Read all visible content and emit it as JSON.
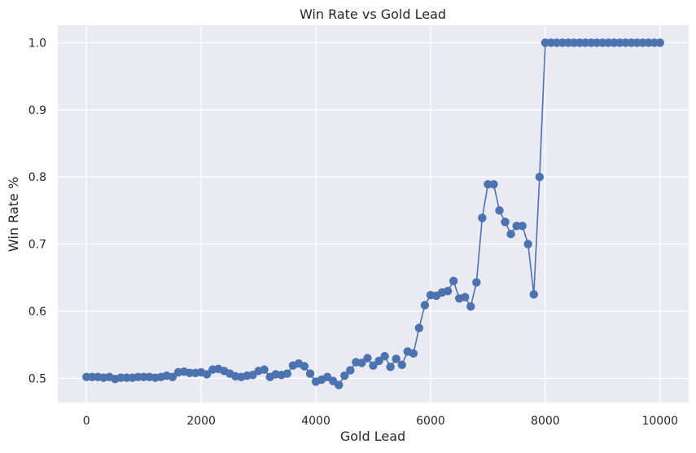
{
  "chart_data": {
    "type": "line",
    "title": "Win Rate vs Gold Lead",
    "xlabel": "Gold Lead",
    "ylabel": "Win Rate %",
    "xlim": [
      -500,
      10500
    ],
    "ylim": [
      0.464,
      1.026
    ],
    "xticks": [
      0,
      2000,
      4000,
      6000,
      8000,
      10000
    ],
    "xtick_labels": [
      "0",
      "2000",
      "4000",
      "6000",
      "8000",
      "10000"
    ],
    "yticks": [
      0.5,
      0.6,
      0.7,
      0.8,
      0.9,
      1.0
    ],
    "ytick_labels": [
      "0.5",
      "0.6",
      "0.7",
      "0.8",
      "0.9",
      "1.0"
    ],
    "grid": true,
    "colors": {
      "background": "#eaeaf2",
      "grid": "#ffffff",
      "series": "#4c72b0"
    },
    "series": [
      {
        "marker": "circle",
        "x": [
          0,
          100,
          200,
          300,
          400,
          500,
          600,
          700,
          800,
          900,
          1000,
          1100,
          1200,
          1300,
          1400,
          1500,
          1600,
          1700,
          1800,
          1900,
          2000,
          2100,
          2200,
          2300,
          2400,
          2500,
          2600,
          2700,
          2800,
          2900,
          3000,
          3100,
          3200,
          3300,
          3400,
          3500,
          3600,
          3700,
          3800,
          3900,
          4000,
          4100,
          4200,
          4300,
          4400,
          4500,
          4600,
          4700,
          4800,
          4900,
          5000,
          5100,
          5200,
          5300,
          5400,
          5500,
          5600,
          5700,
          5800,
          5900,
          6000,
          6100,
          6200,
          6300,
          6400,
          6500,
          6600,
          6700,
          6800,
          6900,
          7000,
          7100,
          7200,
          7300,
          7400,
          7500,
          7600,
          7700,
          7800,
          7900,
          8000,
          8100,
          8200,
          8300,
          8400,
          8500,
          8600,
          8700,
          8800,
          8900,
          9000,
          9100,
          9200,
          9300,
          9400,
          9500,
          9600,
          9700,
          9800,
          9900,
          10000
        ],
        "y": [
          0.502,
          0.502,
          0.502,
          0.501,
          0.502,
          0.499,
          0.501,
          0.501,
          0.501,
          0.502,
          0.502,
          0.502,
          0.501,
          0.502,
          0.504,
          0.502,
          0.509,
          0.51,
          0.508,
          0.508,
          0.509,
          0.506,
          0.513,
          0.514,
          0.511,
          0.507,
          0.503,
          0.502,
          0.504,
          0.505,
          0.511,
          0.513,
          0.502,
          0.506,
          0.505,
          0.507,
          0.519,
          0.522,
          0.518,
          0.507,
          0.495,
          0.498,
          0.502,
          0.496,
          0.49,
          0.504,
          0.512,
          0.524,
          0.523,
          0.53,
          0.519,
          0.526,
          0.533,
          0.517,
          0.529,
          0.52,
          0.54,
          0.537,
          0.575,
          0.609,
          0.624,
          0.623,
          0.628,
          0.63,
          0.645,
          0.619,
          0.621,
          0.607,
          0.643,
          0.739,
          0.789,
          0.789,
          0.75,
          0.733,
          0.715,
          0.727,
          0.727,
          0.7,
          0.625,
          0.8,
          1.0,
          1.0,
          1.0,
          1.0,
          1.0,
          1.0,
          1.0,
          1.0,
          1.0,
          1.0,
          1.0,
          1.0,
          1.0,
          1.0,
          1.0,
          1.0,
          1.0,
          1.0,
          1.0,
          1.0,
          1.0
        ]
      }
    ]
  }
}
